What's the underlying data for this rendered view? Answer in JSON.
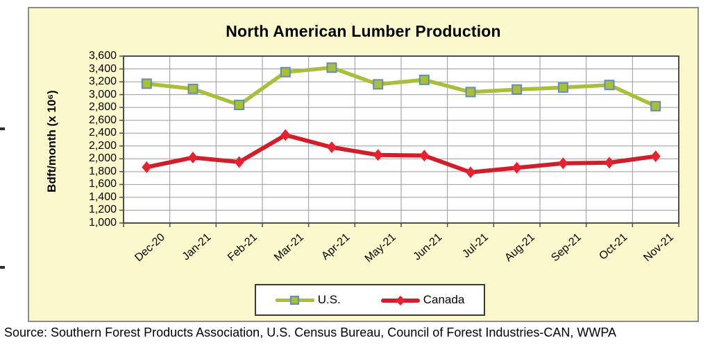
{
  "page": {
    "source_text": "Source: Southern Forest Products Association, U.S. Census Bureau, Council of Forest Industries-CAN, WWPA"
  },
  "chart_data": {
    "type": "line",
    "title": "North American Lumber Production",
    "ylabel": "Bdft/month (x 10⁶)",
    "xlabel": "",
    "ylim": [
      1000,
      3600
    ],
    "ytick_step": 200,
    "y_ticks": [
      "3,600",
      "3,400",
      "3,200",
      "3,000",
      "2,800",
      "2,600",
      "2,400",
      "2,200",
      "2,000",
      "1,800",
      "1,600",
      "1,400",
      "1,200",
      "1,000"
    ],
    "categories": [
      "Dec-20",
      "Jan-21",
      "Feb-21",
      "Mar-21",
      "Apr-21",
      "May-21",
      "Jun-21",
      "Jul-21",
      "Aug-21",
      "Sep-21",
      "Oct-21",
      "Nov-21"
    ],
    "series": [
      {
        "name": "U.S.",
        "marker": "square",
        "color": "#A9BE3B",
        "marker_fill": "#A9BE3B",
        "marker_border": "#5F8FB4",
        "line_width": 5.5,
        "values": [
          3170,
          3090,
          2840,
          3350,
          3420,
          3160,
          3230,
          3040,
          3080,
          3110,
          3150,
          2820
        ]
      },
      {
        "name": "Canada",
        "marker": "diamond",
        "color": "#CF1F2C",
        "marker_fill": "#E42230",
        "marker_border": "#CF1F2C",
        "line_width": 6,
        "values": [
          1870,
          2020,
          1950,
          2370,
          2180,
          2060,
          2050,
          1790,
          1860,
          1930,
          1940,
          2040
        ]
      }
    ],
    "grid": true,
    "gridline_color": "#9a9a9a",
    "plot_border_color": "#4d4d4d",
    "panel_bg": "#FBF8CC",
    "legend_position": "bottom"
  }
}
